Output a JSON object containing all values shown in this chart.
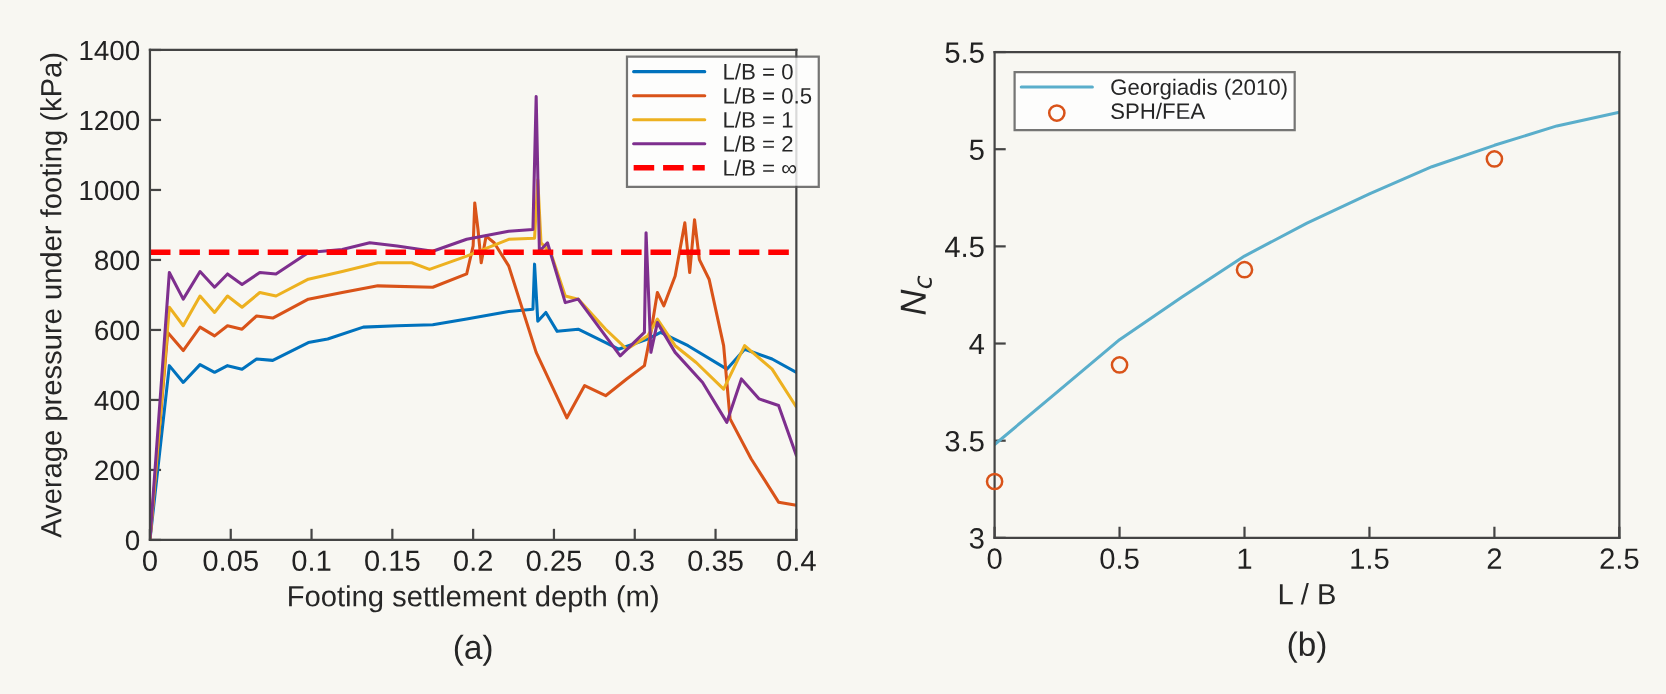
{
  "chart_data": [
    {
      "type": "line",
      "xlabel": "Footing settlement depth (m)",
      "ylabel": "Average pressure under footing (kPa)",
      "xlim": [
        0,
        0.4
      ],
      "xticks": [
        0,
        0.05,
        0.1,
        0.15,
        0.2,
        0.25,
        0.3,
        0.35,
        0.4
      ],
      "ylim": [
        0,
        1400
      ],
      "yticks": [
        0,
        200,
        400,
        600,
        800,
        1000,
        1200,
        1400
      ],
      "legend": "top right",
      "grid": false,
      "line_style": "solid",
      "annotations": [
        "(a)"
      ],
      "ref_lines": [
        {
          "axis": "y",
          "value": 822,
          "label": "L/B = ∞",
          "color": "#ff0000",
          "line_style": "dashed"
        }
      ],
      "series": [
        {
          "name": "L/B = 0",
          "color": "#0072bd",
          "x": [
            0,
            0.012,
            0.0206,
            0.031,
            0.04,
            0.048,
            0.057,
            0.066,
            0.076,
            0.098,
            0.11,
            0.132,
            0.153,
            0.175,
            0.196,
            0.222,
            0.237,
            0.238,
            0.24,
            0.245,
            0.252,
            0.265,
            0.282,
            0.29,
            0.308,
            0.316,
            0.333,
            0.357,
            0.368,
            0.385,
            0.4
          ],
          "values": [
            0,
            498,
            450,
            501,
            479,
            498,
            488,
            517,
            513,
            564,
            574,
            608,
            612,
            615,
            631,
            653,
            659,
            788,
            625,
            650,
            596,
            602,
            564,
            545,
            574,
            593,
            555,
            488,
            545,
            517,
            479
          ]
        },
        {
          "name": "L/B = 0.5",
          "color": "#d95319",
          "x": [
            0,
            0.011,
            0.0206,
            0.031,
            0.04,
            0.048,
            0.057,
            0.066,
            0.076,
            0.098,
            0.119,
            0.141,
            0.175,
            0.196,
            0.2,
            0.201,
            0.203,
            0.205,
            0.208,
            0.213,
            0.222,
            0.239,
            0.258,
            0.269,
            0.282,
            0.295,
            0.306,
            0.31,
            0.314,
            0.318,
            0.325,
            0.331,
            0.334,
            0.337,
            0.34,
            0.346,
            0.355,
            0.359,
            0.372,
            0.389,
            0.4
          ],
          "values": [
            0,
            593,
            541,
            608,
            583,
            612,
            602,
            640,
            634,
            688,
            707,
            726,
            722,
            760,
            840,
            963,
            887,
            792,
            868,
            849,
            783,
            536,
            349,
            441,
            412,
            460,
            498,
            593,
            707,
            669,
            754,
            906,
            764,
            915,
            801,
            745,
            555,
            346,
            232,
            108,
            99
          ]
        },
        {
          "name": "L/B = 1",
          "color": "#edb120",
          "x": [
            0,
            0.012,
            0.0206,
            0.031,
            0.04,
            0.048,
            0.057,
            0.068,
            0.078,
            0.098,
            0.119,
            0.141,
            0.162,
            0.173,
            0.196,
            0.222,
            0.238,
            0.24,
            0.242,
            0.248,
            0.257,
            0.265,
            0.282,
            0.295,
            0.308,
            0.314,
            0.325,
            0.338,
            0.355,
            0.368,
            0.385,
            0.4
          ],
          "values": [
            0,
            665,
            612,
            697,
            650,
            697,
            665,
            707,
            697,
            745,
            767,
            792,
            792,
            773,
            811,
            859,
            862,
            1029,
            849,
            821,
            697,
            688,
            602,
            545,
            583,
            631,
            555,
            507,
            431,
            555,
            488,
            380
          ]
        },
        {
          "name": "L/B = 2",
          "color": "#7e2f8e",
          "x": [
            0,
            0.012,
            0.0206,
            0.031,
            0.04,
            0.048,
            0.057,
            0.068,
            0.078,
            0.098,
            0.119,
            0.136,
            0.153,
            0.175,
            0.196,
            0.222,
            0.237,
            0.239,
            0.241,
            0.246,
            0.257,
            0.265,
            0.291,
            0.306,
            0.307,
            0.31,
            0.314,
            0.325,
            0.342,
            0.357,
            0.366,
            0.377,
            0.389,
            0.4
          ],
          "values": [
            0,
            764,
            688,
            767,
            722,
            760,
            730,
            764,
            760,
            821,
            830,
            849,
            840,
            825,
            859,
            882,
            887,
            1267,
            825,
            849,
            678,
            688,
            526,
            593,
            878,
            536,
            621,
            536,
            450,
            336,
            460,
            403,
            384,
            241
          ]
        }
      ]
    },
    {
      "type": "line",
      "xlabel": "L / B",
      "ylabel": "N$_{c}$",
      "xlim": [
        0,
        2.5
      ],
      "xticks": [
        0,
        0.5,
        1,
        1.5,
        2,
        2.5
      ],
      "ylim": [
        3,
        5.5
      ],
      "yticks": [
        3,
        3.5,
        4,
        4.5,
        5,
        5.5
      ],
      "legend": "top left",
      "grid": false,
      "annotations": [
        "(b)"
      ],
      "series": [
        {
          "name": "Georgiadis (2010)",
          "type": "line",
          "color": "#5aaecb",
          "marker": "none",
          "x": [
            0,
            0.25,
            0.5,
            0.75,
            1,
            1.25,
            1.5,
            1.75,
            2,
            2.25,
            2.5
          ],
          "values": [
            3.48,
            3.75,
            4.02,
            4.24,
            4.45,
            4.62,
            4.77,
            4.91,
            5.02,
            5.12,
            5.19
          ]
        },
        {
          "name": "SPH/FEA",
          "type": "scatter",
          "color": "#d95319",
          "marker": "circle",
          "x": [
            0,
            0.5,
            1,
            2
          ],
          "values": [
            3.29,
            3.89,
            4.38,
            4.95
          ]
        }
      ]
    }
  ]
}
